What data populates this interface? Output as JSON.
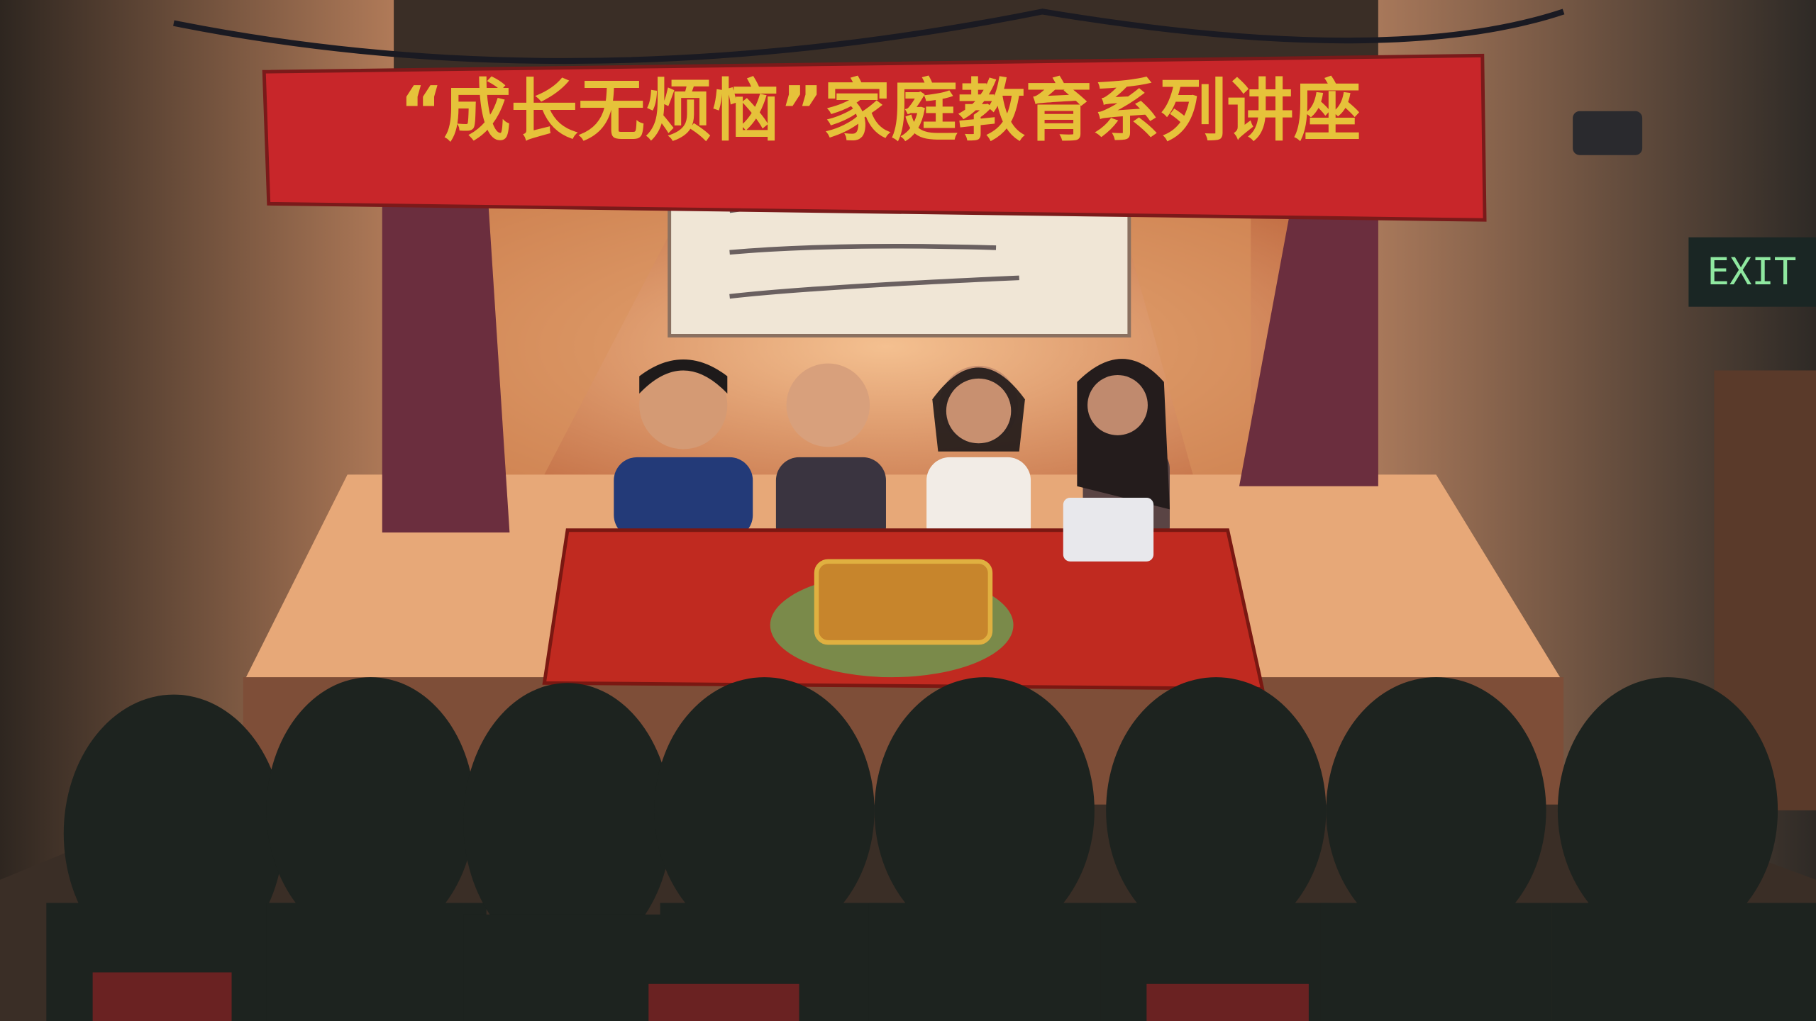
{
  "banner": {
    "title": "“成长无烦恼”家庭教育系列讲座"
  },
  "exit_sign": {
    "label": "EXIT"
  }
}
